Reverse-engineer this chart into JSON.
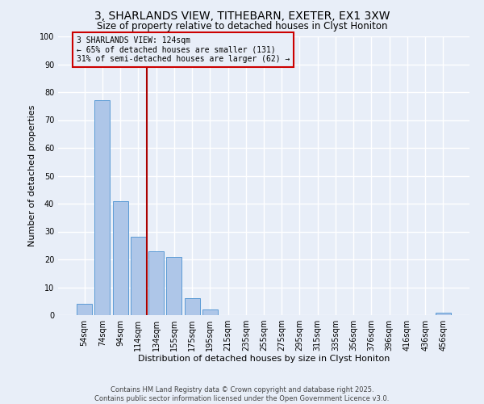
{
  "title": "3, SHARLANDS VIEW, TITHEBARN, EXETER, EX1 3XW",
  "subtitle": "Size of property relative to detached houses in Clyst Honiton",
  "xlabel": "Distribution of detached houses by size in Clyst Honiton",
  "ylabel": "Number of detached properties",
  "bar_labels": [
    "54sqm",
    "74sqm",
    "94sqm",
    "114sqm",
    "134sqm",
    "155sqm",
    "175sqm",
    "195sqm",
    "215sqm",
    "235sqm",
    "255sqm",
    "275sqm",
    "295sqm",
    "315sqm",
    "335sqm",
    "356sqm",
    "376sqm",
    "396sqm",
    "416sqm",
    "436sqm",
    "456sqm"
  ],
  "bar_values": [
    4,
    77,
    41,
    28,
    23,
    21,
    6,
    2,
    0,
    0,
    0,
    0,
    0,
    0,
    0,
    0,
    0,
    0,
    0,
    0,
    1
  ],
  "bar_color": "#aec6e8",
  "bar_edge_color": "#5b9bd5",
  "vline_x": 3.5,
  "vline_color": "#aa0000",
  "ylim": [
    0,
    100
  ],
  "yticks": [
    0,
    10,
    20,
    30,
    40,
    50,
    60,
    70,
    80,
    90,
    100
  ],
  "annotation_line1": "3 SHARLANDS VIEW: 124sqm",
  "annotation_line2": "← 65% of detached houses are smaller (131)",
  "annotation_line3": "31% of semi-detached houses are larger (62) →",
  "annotation_box_color": "#cc0000",
  "footer_line1": "Contains HM Land Registry data © Crown copyright and database right 2025.",
  "footer_line2": "Contains public sector information licensed under the Open Government Licence v3.0.",
  "background_color": "#e8eef8",
  "grid_color": "#ffffff",
  "title_fontsize": 10,
  "subtitle_fontsize": 8.5,
  "axis_label_fontsize": 8,
  "tick_fontsize": 7,
  "annotation_fontsize": 7,
  "footer_fontsize": 6
}
